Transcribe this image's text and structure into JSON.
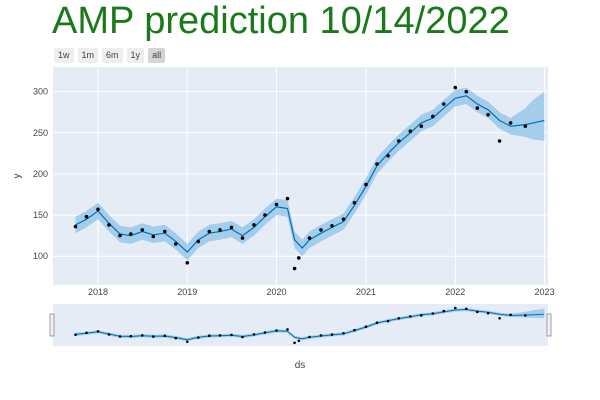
{
  "title": "AMP prediction 10/14/2022",
  "range_selector": {
    "buttons": [
      "1w",
      "1m",
      "6m",
      "1y",
      "all"
    ],
    "active": "all"
  },
  "colors": {
    "plot_bg": "#e5ecf6",
    "grid": "#ffffff",
    "forecast_line": "#0072b2",
    "uncertainty_band": "#8ec3e8",
    "actual_points": "#000000",
    "title": "#1a7a1a",
    "tick_text": "#444444"
  },
  "chart_data": {
    "type": "line",
    "title": "AMP prediction 10/14/2022",
    "xlabel": "ds",
    "ylabel": "y",
    "x_tick_labels": [
      "2018",
      "2019",
      "2020",
      "2021",
      "2022",
      "2023"
    ],
    "y_tick_labels": [
      "100",
      "150",
      "200",
      "250",
      "300"
    ],
    "xlim": [
      "2017-07-01",
      "2023-01-15"
    ],
    "ylim": [
      65,
      330
    ],
    "grid": true,
    "legend": "none",
    "range_slider": true,
    "series": [
      {
        "role": "forecast",
        "x": [
          "2017-10-01",
          "2017-11-15",
          "2018-01-01",
          "2018-02-15",
          "2018-04-01",
          "2018-05-15",
          "2018-07-01",
          "2018-08-15",
          "2018-10-01",
          "2018-11-15",
          "2019-01-01",
          "2019-02-15",
          "2019-04-01",
          "2019-05-15",
          "2019-07-01",
          "2019-08-15",
          "2019-10-01",
          "2019-11-15",
          "2020-01-01",
          "2020-02-15",
          "2020-03-15",
          "2020-04-15",
          "2020-05-15",
          "2020-07-01",
          "2020-08-15",
          "2020-10-01",
          "2020-11-15",
          "2021-01-01",
          "2021-02-15",
          "2021-04-01",
          "2021-05-15",
          "2021-07-01",
          "2021-08-15",
          "2021-10-01",
          "2021-11-15",
          "2022-01-01",
          "2022-02-15",
          "2022-04-01",
          "2022-05-15",
          "2022-07-01",
          "2022-08-15",
          "2022-10-14",
          "2022-11-15",
          "2022-12-31"
        ],
        "y": [
          138,
          145,
          155,
          140,
          127,
          125,
          130,
          126,
          128,
          118,
          105,
          120,
          128,
          130,
          133,
          125,
          135,
          148,
          160,
          158,
          120,
          110,
          120,
          128,
          135,
          142,
          162,
          185,
          210,
          225,
          238,
          250,
          262,
          268,
          280,
          292,
          295,
          285,
          278,
          265,
          258,
          260,
          262,
          265
        ],
        "lower": [
          128,
          135,
          145,
          130,
          117,
          115,
          120,
          116,
          118,
          108,
          95,
          110,
          118,
          120,
          123,
          115,
          125,
          138,
          150,
          148,
          110,
          100,
          110,
          118,
          125,
          132,
          152,
          175,
          200,
          215,
          228,
          240,
          252,
          258,
          270,
          282,
          285,
          275,
          268,
          255,
          248,
          245,
          242,
          240
        ],
        "upper": [
          148,
          155,
          165,
          150,
          137,
          135,
          140,
          136,
          138,
          128,
          115,
          130,
          138,
          140,
          143,
          135,
          145,
          158,
          170,
          168,
          130,
          120,
          130,
          138,
          145,
          152,
          172,
          195,
          220,
          235,
          248,
          260,
          272,
          278,
          290,
          302,
          305,
          295,
          288,
          275,
          268,
          280,
          290,
          300
        ]
      },
      {
        "role": "actual",
        "x": [
          "2017-10-01",
          "2017-11-15",
          "2018-01-01",
          "2018-02-15",
          "2018-04-01",
          "2018-05-15",
          "2018-07-01",
          "2018-08-15",
          "2018-10-01",
          "2018-11-15",
          "2019-01-01",
          "2019-02-15",
          "2019-04-01",
          "2019-05-15",
          "2019-07-01",
          "2019-08-15",
          "2019-10-01",
          "2019-11-15",
          "2020-01-01",
          "2020-02-15",
          "2020-03-15",
          "2020-04-01",
          "2020-05-15",
          "2020-07-01",
          "2020-08-15",
          "2020-10-01",
          "2020-11-15",
          "2021-01-01",
          "2021-02-15",
          "2021-04-01",
          "2021-05-15",
          "2021-07-01",
          "2021-08-15",
          "2021-10-01",
          "2021-11-15",
          "2022-01-01",
          "2022-02-15",
          "2022-04-01",
          "2022-05-15",
          "2022-07-01",
          "2022-08-15",
          "2022-10-14"
        ],
        "y": [
          136,
          148,
          157,
          138,
          125,
          127,
          132,
          124,
          130,
          115,
          92,
          118,
          130,
          132,
          135,
          122,
          138,
          150,
          163,
          170,
          85,
          98,
          122,
          132,
          137,
          145,
          165,
          187,
          212,
          222,
          240,
          252,
          258,
          270,
          285,
          305,
          300,
          280,
          272,
          240,
          262,
          258
        ]
      }
    ]
  }
}
